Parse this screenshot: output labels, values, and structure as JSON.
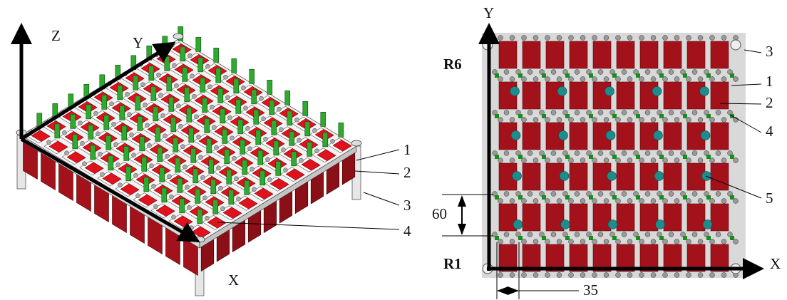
{
  "left_view": {
    "axis_labels": {
      "z": "Z",
      "y": "Y",
      "x": "X"
    },
    "callouts": [
      "1",
      "2",
      "3",
      "4"
    ]
  },
  "right_view": {
    "axis_labels": {
      "y": "Y",
      "x": "X"
    },
    "row_labels": {
      "top": "R6",
      "bottom": "R1"
    },
    "callouts": [
      "3",
      "1",
      "2",
      "4",
      "5"
    ],
    "dimensions": {
      "row_pitch": "60",
      "column_pitch": "35"
    }
  }
}
